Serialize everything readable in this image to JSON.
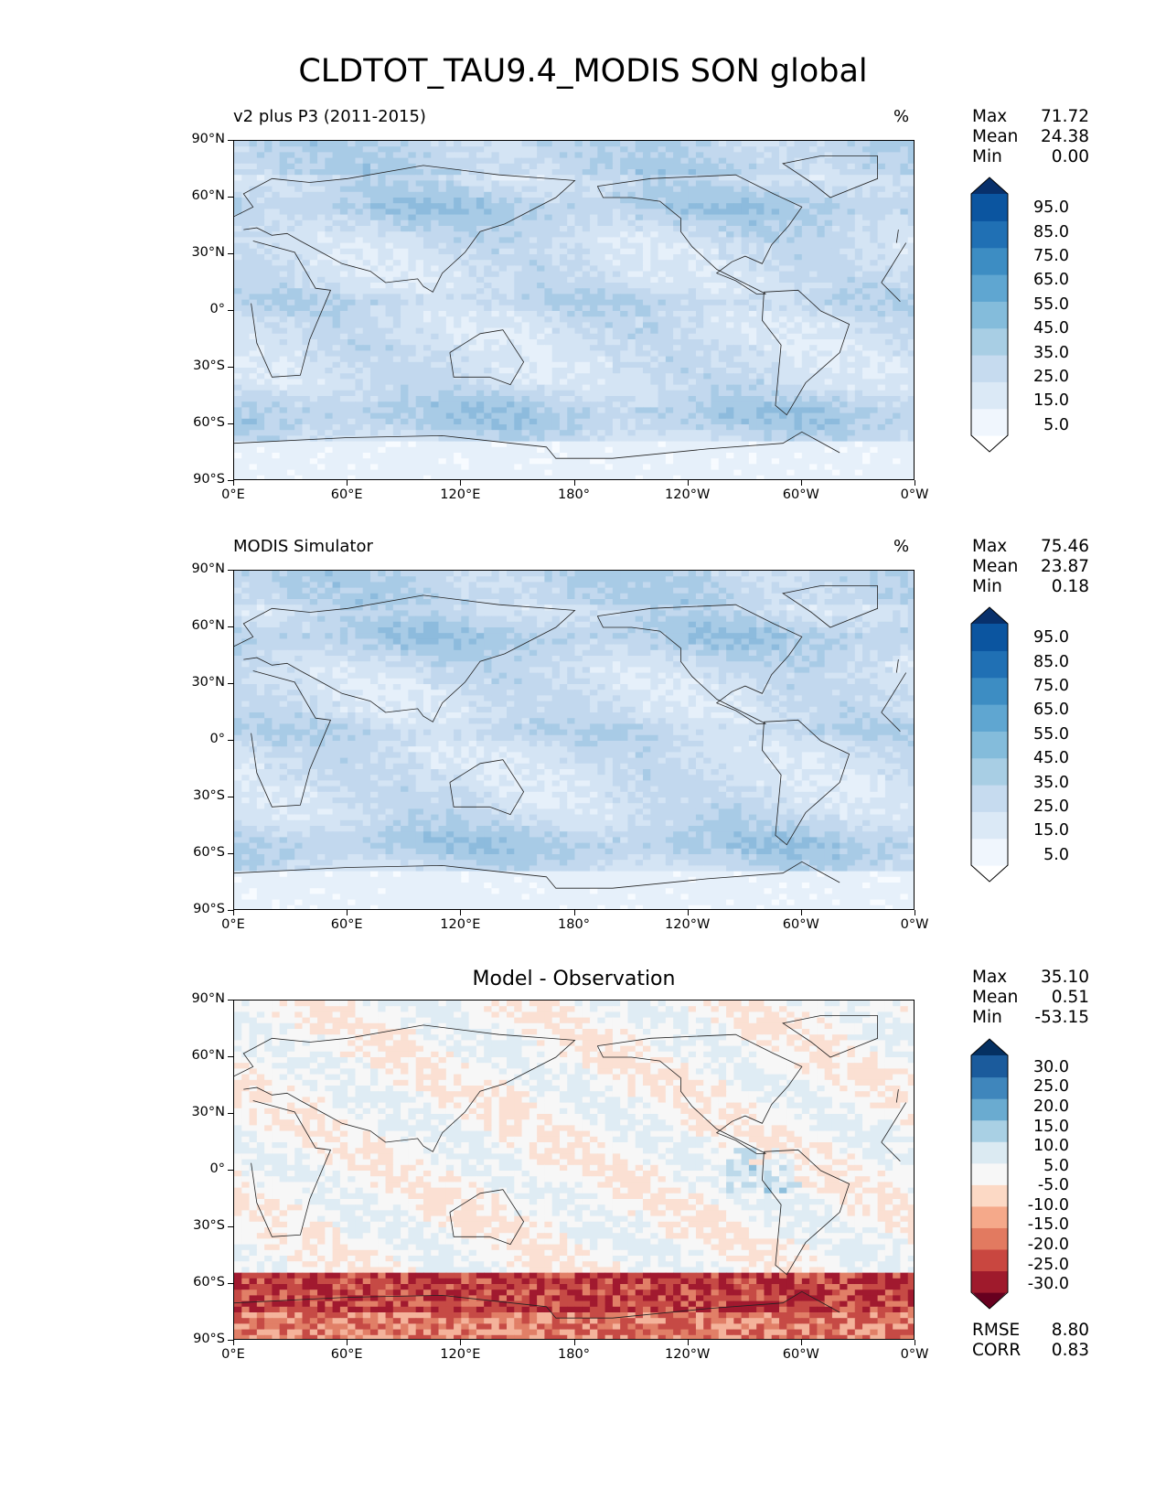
{
  "figure_title": "CLDTOT_TAU9.4_MODIS SON global",
  "lat_ticks": [
    "90°N",
    "60°N",
    "30°N",
    "0°",
    "30°S",
    "60°S",
    "90°S"
  ],
  "lon_ticks": [
    "0°E",
    "60°E",
    "120°E",
    "180°",
    "120°W",
    "60°W",
    "0°W"
  ],
  "panels": [
    {
      "title_left": "v2 plus P3 (2011-2015)",
      "title_right": "%",
      "title_center": "",
      "stats": [
        {
          "label": "Max",
          "value": "71.72"
        },
        {
          "label": "Mean",
          "value": "24.38"
        },
        {
          "label": "Min",
          "value": "0.00"
        }
      ],
      "colorbar": {
        "labels": [
          "95.0",
          "85.0",
          "75.0",
          "65.0",
          "55.0",
          "45.0",
          "35.0",
          "25.0",
          "15.0",
          "5.0"
        ],
        "colors": [
          "#ffffff",
          "#f0f6fd",
          "#dbe9f6",
          "#c6dbef",
          "#a8cee4",
          "#84bcdb",
          "#5fa6d1",
          "#3d8dc3",
          "#2070b4",
          "#0b55a0",
          "#08306b"
        ]
      },
      "footer": []
    },
    {
      "title_left": "MODIS Simulator",
      "title_right": "%",
      "title_center": "",
      "stats": [
        {
          "label": "Max",
          "value": "75.46"
        },
        {
          "label": "Mean",
          "value": "23.87"
        },
        {
          "label": "Min",
          "value": "0.18"
        }
      ],
      "colorbar": {
        "labels": [
          "95.0",
          "85.0",
          "75.0",
          "65.0",
          "55.0",
          "45.0",
          "35.0",
          "25.0",
          "15.0",
          "5.0"
        ],
        "colors": [
          "#ffffff",
          "#f0f6fd",
          "#dbe9f6",
          "#c6dbef",
          "#a8cee4",
          "#84bcdb",
          "#5fa6d1",
          "#3d8dc3",
          "#2070b4",
          "#0b55a0",
          "#08306b"
        ]
      },
      "footer": []
    },
    {
      "title_left": "",
      "title_right": "",
      "title_center": "Model - Observation",
      "stats": [
        {
          "label": "Max",
          "value": "35.10"
        },
        {
          "label": "Mean",
          "value": "0.51"
        },
        {
          "label": "Min",
          "value": "-53.15"
        }
      ],
      "colorbar": {
        "labels": [
          "30.0",
          "25.0",
          "20.0",
          "15.0",
          "10.0",
          "5.0",
          "-5.0",
          "-10.0",
          "-15.0",
          "-20.0",
          "-25.0",
          "-30.0"
        ],
        "colors": [
          "#67001f",
          "#9f1a2c",
          "#c94740",
          "#e27a60",
          "#f5a98a",
          "#fcd9c5",
          "#f7f7f7",
          "#dbeaf2",
          "#a9d0e4",
          "#6aabd0",
          "#3f86bc",
          "#1b5b9c",
          "#053061"
        ]
      },
      "footer": [
        {
          "label": "RMSE",
          "value": "8.80"
        },
        {
          "label": "CORR",
          "value": "0.83"
        }
      ]
    }
  ]
}
